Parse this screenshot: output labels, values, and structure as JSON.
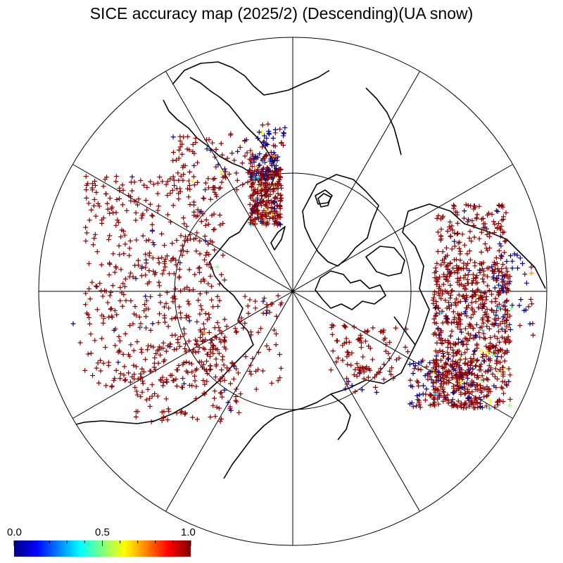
{
  "title": "SICE accuracy map (2025/2) (Descending)(UA snow)",
  "projection": "north-polar-stereographic",
  "graticule": {
    "meridian_step_deg": 30,
    "inner_circle_note": "latitude circle"
  },
  "colorbar": {
    "min_label": "0.0",
    "mid_label": "0.5",
    "max_label": "1.0",
    "colormap": "jet",
    "colors": [
      "#00007f",
      "#0000ff",
      "#007fff",
      "#00ffff",
      "#7fff7f",
      "#ffff00",
      "#ff7f00",
      "#ff0000",
      "#7f0000"
    ]
  },
  "marker_colors": {
    "high_accuracy": "#8b0000",
    "low_accuracy": "#00008b",
    "mid_values": [
      "#00bfff",
      "#7fff7f",
      "#ffff00",
      "#ff8c00"
    ]
  },
  "land_outline_color": "#000000"
}
